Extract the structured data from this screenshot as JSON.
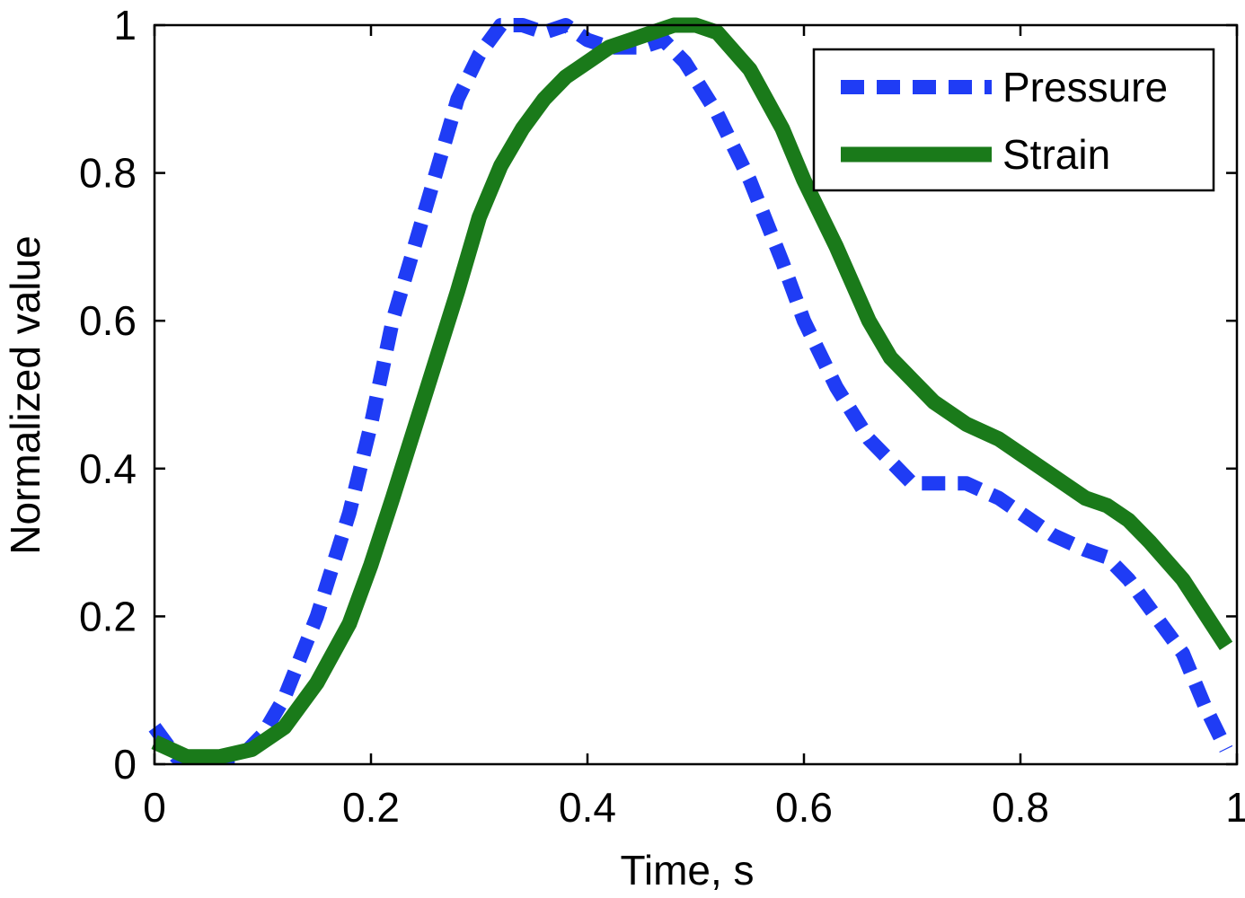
{
  "chart_data": {
    "type": "line",
    "title": "",
    "xlabel": "Time, s",
    "ylabel": "Normalized value",
    "xlim": [
      0,
      1
    ],
    "ylim": [
      0,
      1
    ],
    "xticks": [
      "0",
      "0.2",
      "0.4",
      "0.6",
      "0.8",
      "1"
    ],
    "yticks": [
      "0",
      "0.2",
      "0.4",
      "0.6",
      "0.8",
      "1"
    ],
    "grid": false,
    "legend_position": "top-right",
    "series": [
      {
        "name": "Pressure",
        "color": "#1f3cf5",
        "style": "dashed",
        "x": [
          0.0,
          0.02,
          0.05,
          0.08,
          0.1,
          0.12,
          0.15,
          0.18,
          0.2,
          0.22,
          0.25,
          0.28,
          0.3,
          0.32,
          0.34,
          0.36,
          0.38,
          0.4,
          0.42,
          0.45,
          0.47,
          0.49,
          0.52,
          0.55,
          0.58,
          0.6,
          0.63,
          0.66,
          0.68,
          0.7,
          0.72,
          0.75,
          0.78,
          0.8,
          0.83,
          0.86,
          0.88,
          0.9,
          0.92,
          0.95,
          0.97,
          0.99
        ],
        "values": [
          0.05,
          0.01,
          0.01,
          0.01,
          0.04,
          0.09,
          0.2,
          0.34,
          0.46,
          0.6,
          0.75,
          0.9,
          0.96,
          1.0,
          1.0,
          0.99,
          1.0,
          0.98,
          0.97,
          0.97,
          0.98,
          0.95,
          0.88,
          0.79,
          0.68,
          0.6,
          0.51,
          0.44,
          0.41,
          0.38,
          0.38,
          0.38,
          0.36,
          0.34,
          0.31,
          0.29,
          0.28,
          0.25,
          0.21,
          0.15,
          0.08,
          0.02
        ]
      },
      {
        "name": "Strain",
        "color": "#1a7a1a",
        "style": "solid",
        "x": [
          0.0,
          0.03,
          0.06,
          0.09,
          0.12,
          0.15,
          0.18,
          0.2,
          0.22,
          0.25,
          0.28,
          0.3,
          0.32,
          0.34,
          0.36,
          0.38,
          0.4,
          0.42,
          0.44,
          0.46,
          0.48,
          0.5,
          0.52,
          0.55,
          0.58,
          0.6,
          0.63,
          0.66,
          0.68,
          0.7,
          0.72,
          0.75,
          0.78,
          0.8,
          0.83,
          0.86,
          0.88,
          0.9,
          0.92,
          0.95,
          0.99
        ],
        "values": [
          0.03,
          0.01,
          0.01,
          0.02,
          0.05,
          0.11,
          0.19,
          0.27,
          0.36,
          0.5,
          0.64,
          0.74,
          0.81,
          0.86,
          0.9,
          0.93,
          0.95,
          0.97,
          0.98,
          0.99,
          1.0,
          1.0,
          0.99,
          0.94,
          0.86,
          0.79,
          0.7,
          0.6,
          0.55,
          0.52,
          0.49,
          0.46,
          0.44,
          0.42,
          0.39,
          0.36,
          0.35,
          0.33,
          0.3,
          0.25,
          0.16
        ]
      }
    ]
  }
}
